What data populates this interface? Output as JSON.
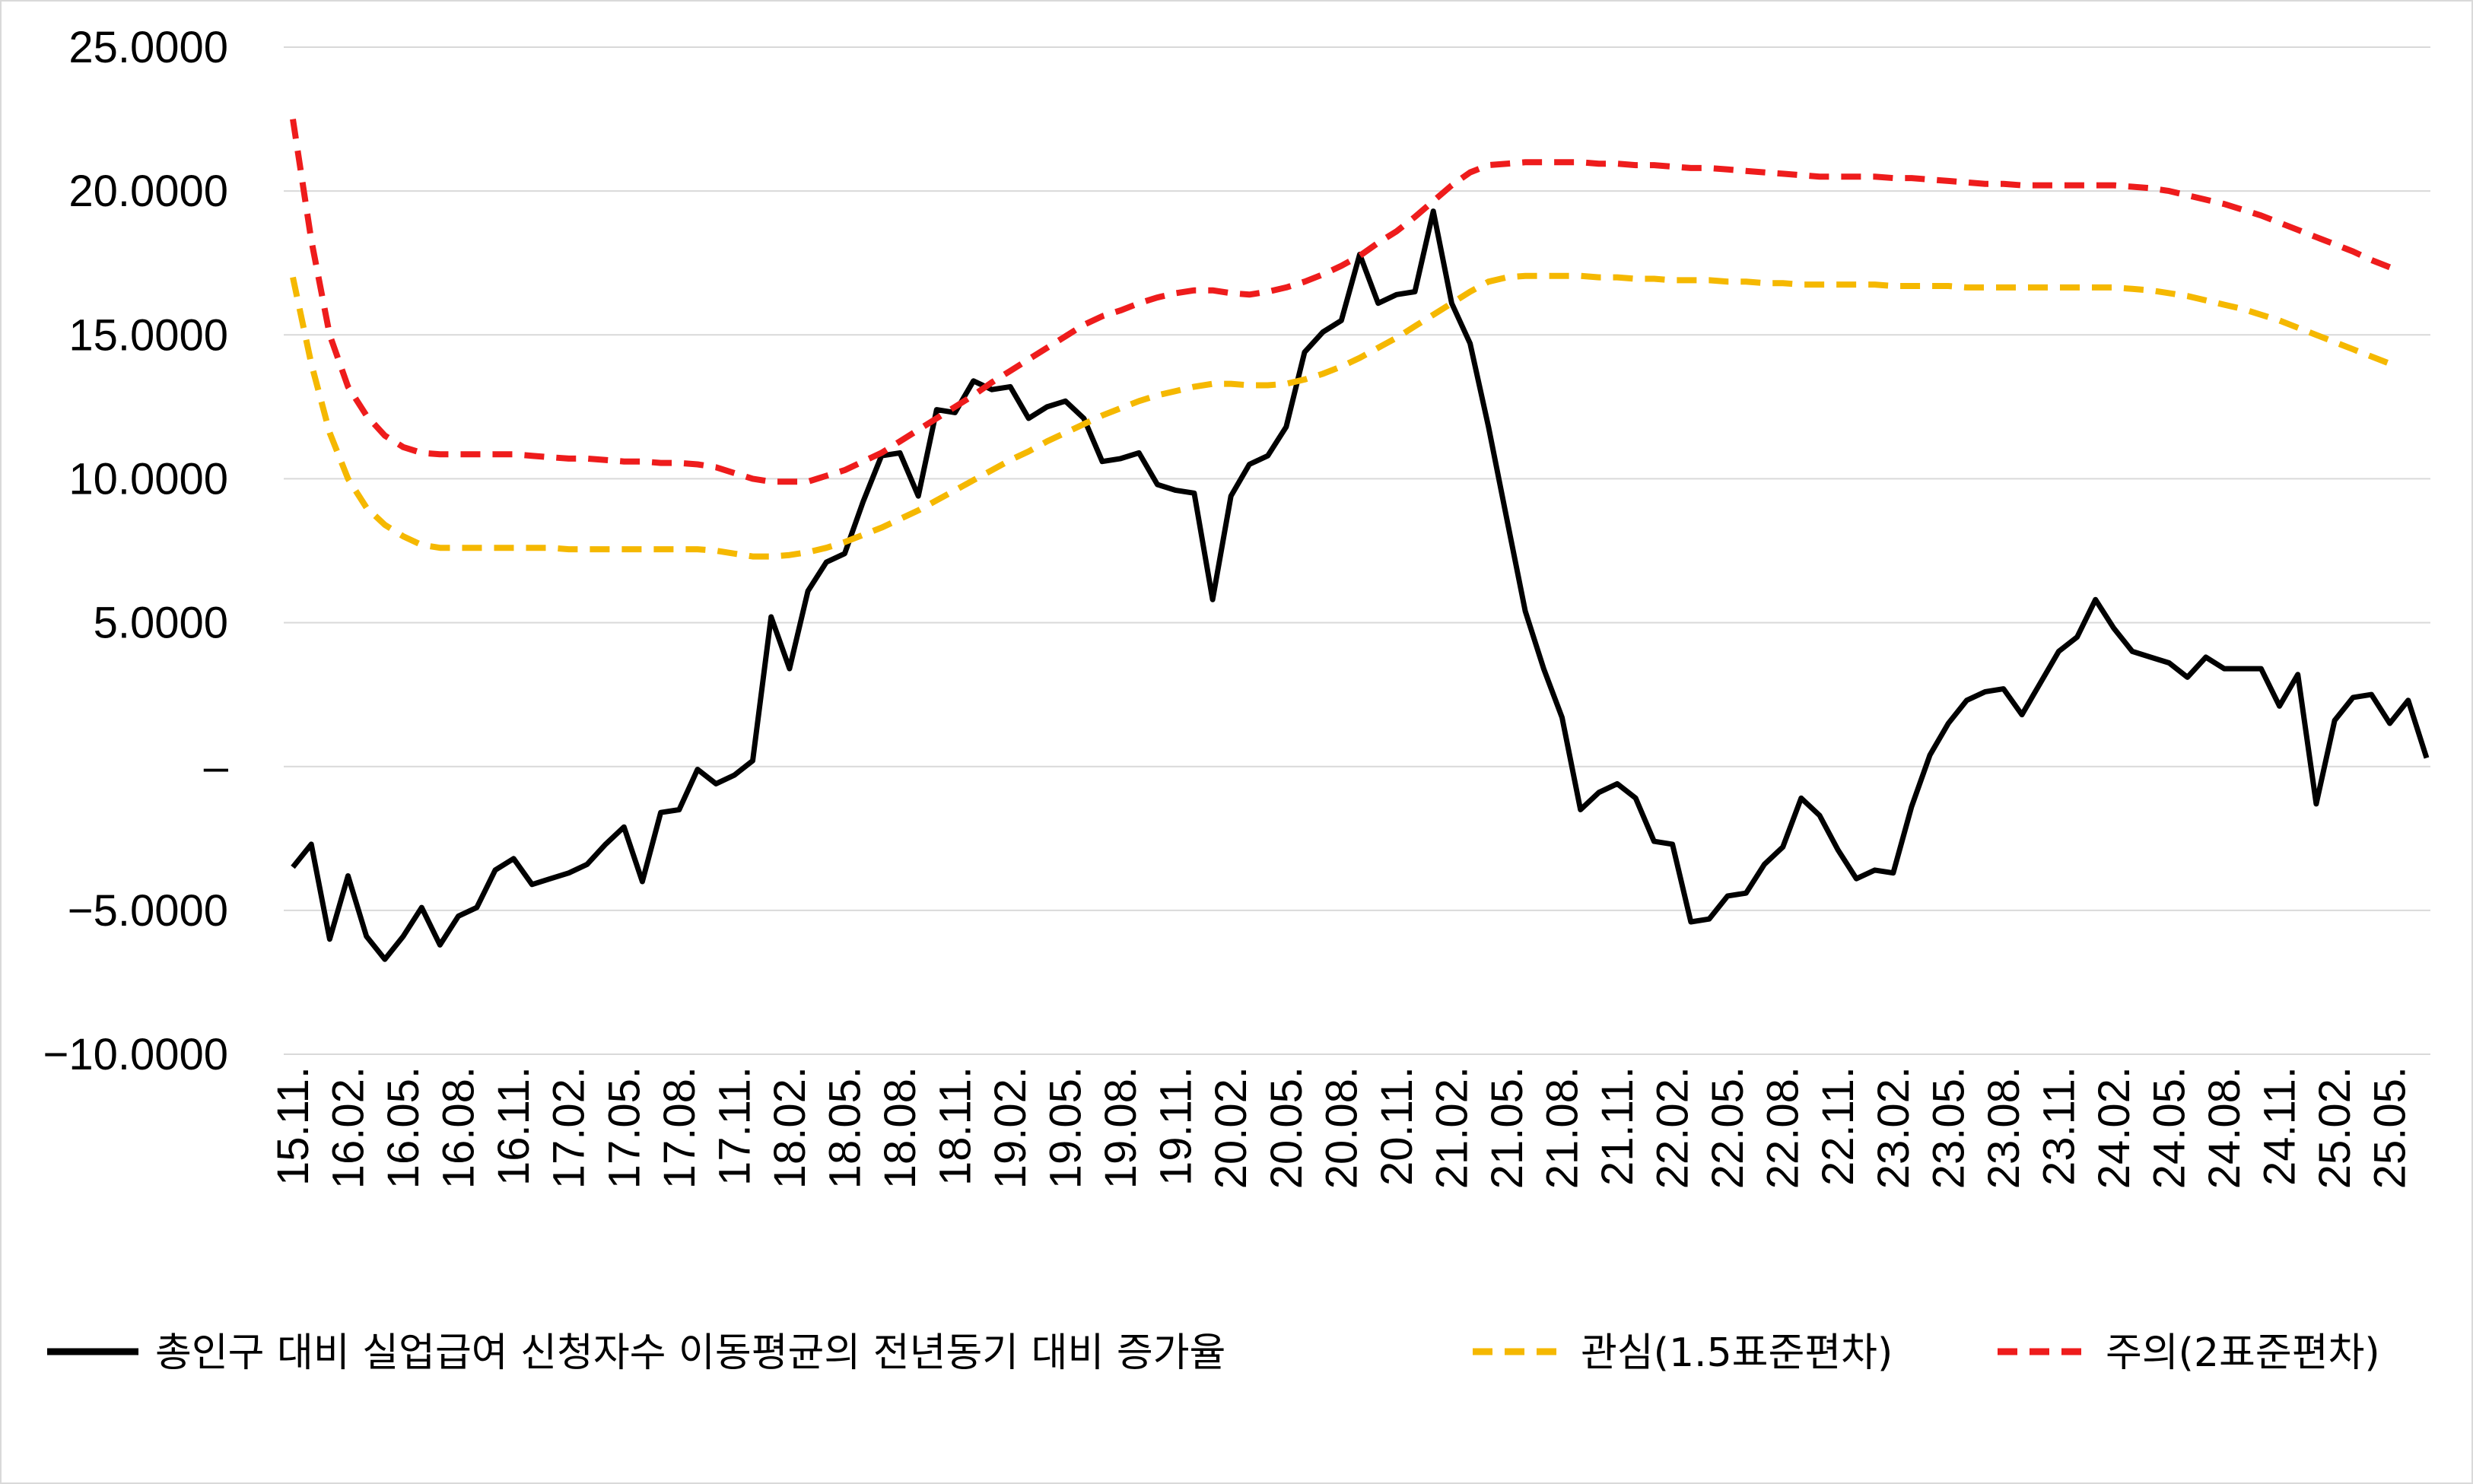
{
  "chart_data": {
    "type": "line",
    "title": "",
    "xlabel": "",
    "ylabel": "",
    "ylim": [
      -10,
      25
    ],
    "y_ticks": [
      {
        "value": 25,
        "label": "25.0000"
      },
      {
        "value": 20,
        "label": "20.0000"
      },
      {
        "value": 15,
        "label": "15.0000"
      },
      {
        "value": 10,
        "label": "10.0000"
      },
      {
        "value": 5,
        "label": "5.0000"
      },
      {
        "value": 0,
        "label": "–"
      },
      {
        "value": -5,
        "label": "−5.0000"
      },
      {
        "value": -10,
        "label": "−10.0000"
      }
    ],
    "x_tick_labels": [
      "15.11.",
      "16.02.",
      "16.05.",
      "16.08.",
      "16.11.",
      "17.02.",
      "17.05.",
      "17.08.",
      "17.11.",
      "18.02.",
      "18.05.",
      "18.08.",
      "18.11.",
      "19.02.",
      "19.05.",
      "19.08.",
      "19.11.",
      "20.02.",
      "20.05.",
      "20.08.",
      "20.11.",
      "21.02.",
      "21.05.",
      "21.08.",
      "21.11.",
      "22.02.",
      "22.05.",
      "22.08.",
      "22.11.",
      "23.02.",
      "23.05.",
      "23.08.",
      "23.11.",
      "24.02.",
      "24.05.",
      "24.08.",
      "24.11.",
      "25.02.",
      "25.05."
    ],
    "x_tick_step": 3,
    "grid": true,
    "legend_position": "bottom",
    "series": [
      {
        "name": "총인구 대비 실업급여 신청자수 이동평균의 전년동기 대비 증가율",
        "color": "#000000",
        "dash": "solid",
        "values": [
          -3.5,
          -2.7,
          -6.0,
          -3.8,
          -5.9,
          -6.7,
          -5.9,
          -4.9,
          -6.2,
          -5.2,
          -4.9,
          -3.6,
          -3.2,
          -4.1,
          -3.9,
          -3.7,
          -3.4,
          -2.7,
          -2.1,
          -4.0,
          -1.6,
          -1.5,
          -0.1,
          -0.6,
          -0.3,
          0.2,
          5.2,
          3.4,
          6.1,
          7.1,
          7.4,
          9.2,
          10.8,
          10.9,
          9.4,
          12.4,
          12.3,
          13.4,
          13.1,
          13.2,
          12.1,
          12.5,
          12.7,
          12.1,
          10.6,
          10.7,
          10.9,
          9.8,
          9.6,
          9.5,
          5.8,
          9.4,
          10.5,
          10.8,
          11.8,
          14.4,
          15.1,
          15.5,
          17.8,
          16.1,
          16.4,
          16.5,
          19.3,
          16.1,
          14.7,
          11.8,
          8.6,
          5.4,
          3.4,
          1.7,
          -1.5,
          -0.9,
          -0.6,
          -1.1,
          -2.6,
          -2.7,
          -5.4,
          -5.3,
          -4.5,
          -4.4,
          -3.4,
          -2.8,
          -1.1,
          -1.7,
          -2.9,
          -3.9,
          -3.6,
          -3.7,
          -1.4,
          0.4,
          1.5,
          2.3,
          2.6,
          2.7,
          1.8,
          2.9,
          4.0,
          4.5,
          5.8,
          4.8,
          4.0,
          3.8,
          3.6,
          3.1,
          3.8,
          3.4,
          3.4,
          3.4,
          2.1,
          3.2,
          -1.3,
          1.6,
          2.4,
          2.5,
          1.5,
          2.3,
          0.3
        ]
      },
      {
        "name": "관심(1.5표준편차)",
        "color": "#f5b800",
        "dash": "dashed",
        "values": [
          17.0,
          14.0,
          11.6,
          10.0,
          9.0,
          8.4,
          8.0,
          7.7,
          7.6,
          7.6,
          7.6,
          7.6,
          7.6,
          7.6,
          7.6,
          7.55,
          7.55,
          7.55,
          7.55,
          7.55,
          7.55,
          7.55,
          7.55,
          7.5,
          7.4,
          7.3,
          7.3,
          7.35,
          7.45,
          7.6,
          7.8,
          8.05,
          8.3,
          8.6,
          8.9,
          9.25,
          9.6,
          9.95,
          10.3,
          10.65,
          10.95,
          11.3,
          11.6,
          11.9,
          12.2,
          12.45,
          12.7,
          12.9,
          13.05,
          13.2,
          13.3,
          13.3,
          13.25,
          13.25,
          13.3,
          13.45,
          13.65,
          13.9,
          14.2,
          14.55,
          14.9,
          15.3,
          15.7,
          16.1,
          16.5,
          16.85,
          17.0,
          17.05,
          17.05,
          17.05,
          17.05,
          17.0,
          17.0,
          16.95,
          16.95,
          16.9,
          16.9,
          16.9,
          16.85,
          16.85,
          16.8,
          16.8,
          16.75,
          16.75,
          16.75,
          16.75,
          16.75,
          16.7,
          16.7,
          16.7,
          16.7,
          16.65,
          16.65,
          16.65,
          16.65,
          16.65,
          16.65,
          16.65,
          16.65,
          16.65,
          16.6,
          16.55,
          16.45,
          16.35,
          16.2,
          16.05,
          15.9,
          15.7,
          15.5,
          15.25,
          15.0,
          14.75,
          14.5,
          14.25,
          14.0
        ]
      },
      {
        "name": "주의(2표준편차)",
        "color": "#ee1c1c",
        "dash": "dashed",
        "values": [
          22.5,
          18.3,
          15.0,
          13.2,
          12.2,
          11.5,
          11.1,
          10.9,
          10.85,
          10.85,
          10.85,
          10.85,
          10.85,
          10.8,
          10.75,
          10.7,
          10.7,
          10.65,
          10.6,
          10.6,
          10.55,
          10.55,
          10.5,
          10.4,
          10.2,
          10.0,
          9.9,
          9.9,
          9.9,
          10.1,
          10.3,
          10.6,
          10.9,
          11.3,
          11.7,
          12.1,
          12.5,
          12.9,
          13.35,
          13.75,
          14.15,
          14.55,
          14.95,
          15.35,
          15.65,
          15.85,
          16.1,
          16.3,
          16.45,
          16.55,
          16.55,
          16.45,
          16.4,
          16.5,
          16.65,
          16.85,
          17.1,
          17.4,
          17.75,
          18.2,
          18.6,
          19.1,
          19.65,
          20.2,
          20.65,
          20.9,
          20.95,
          21.0,
          21.0,
          21.0,
          21.0,
          20.95,
          20.95,
          20.9,
          20.9,
          20.85,
          20.8,
          20.8,
          20.75,
          20.7,
          20.65,
          20.6,
          20.55,
          20.5,
          20.5,
          20.5,
          20.5,
          20.45,
          20.45,
          20.4,
          20.35,
          20.3,
          20.25,
          20.25,
          20.2,
          20.2,
          20.2,
          20.2,
          20.2,
          20.2,
          20.15,
          20.1,
          20.0,
          19.85,
          19.7,
          19.55,
          19.35,
          19.15,
          18.9,
          18.65,
          18.4,
          18.15,
          17.9,
          17.6,
          17.35
        ]
      }
    ]
  }
}
